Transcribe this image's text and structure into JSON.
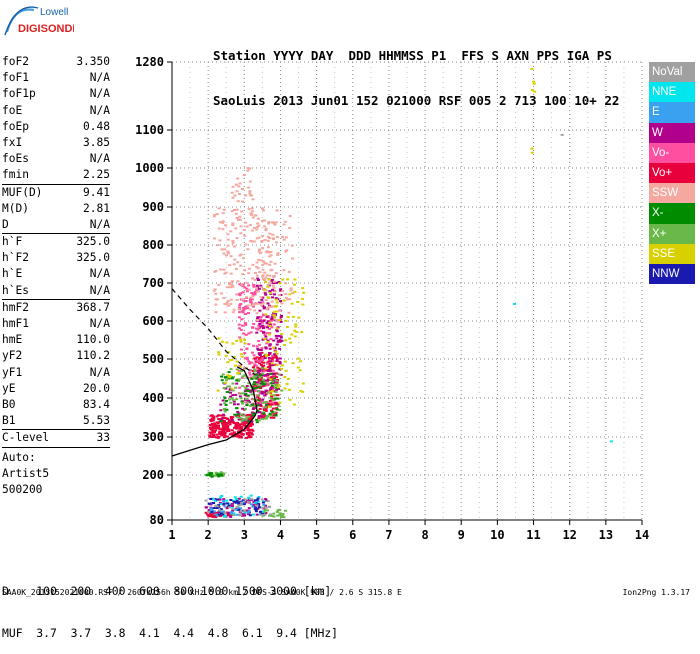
{
  "logo": {
    "line1": "Lowell",
    "line2": "DIGISONDE"
  },
  "header": {
    "line1": "Station YYYY DAY  DDD HHMMSS P1  FFS S AXN PPS IGA PS",
    "line2": "SaoLuis 2013 Jun01 152 021000 RSF 005 2 713 100 10+ 22"
  },
  "params": {
    "group1": [
      {
        "name": "foF2",
        "value": "3.350"
      },
      {
        "name": "foF1",
        "value": "N/A"
      },
      {
        "name": "foF1p",
        "value": "N/A"
      },
      {
        "name": "foE",
        "value": "N/A"
      },
      {
        "name": "foEp",
        "value": "0.48"
      },
      {
        "name": "fxI",
        "value": "3.85"
      },
      {
        "name": "foEs",
        "value": "N/A"
      },
      {
        "name": "fmin",
        "value": "2.25"
      }
    ],
    "group2": [
      {
        "name": "MUF(D)",
        "value": "9.41"
      },
      {
        "name": "M(D)",
        "value": "2.81"
      },
      {
        "name": "D",
        "value": "N/A"
      }
    ],
    "group3": [
      {
        "name": "h`F",
        "value": "325.0"
      },
      {
        "name": "h`F2",
        "value": "325.0"
      },
      {
        "name": "h`E",
        "value": "N/A"
      },
      {
        "name": "h`Es",
        "value": "N/A"
      }
    ],
    "group4": [
      {
        "name": "hmF2",
        "value": "368.7"
      },
      {
        "name": "hmF1",
        "value": "N/A"
      },
      {
        "name": "hmE",
        "value": "110.0"
      },
      {
        "name": "yF2",
        "value": "110.2"
      },
      {
        "name": "yF1",
        "value": "N/A"
      },
      {
        "name": "yE",
        "value": "20.0"
      },
      {
        "name": "B0",
        "value": "83.4"
      },
      {
        "name": "B1",
        "value": "5.53"
      }
    ],
    "group5": [
      {
        "name": "C-level",
        "value": "33"
      }
    ],
    "auto": [
      "Auto:",
      "Artist5",
      "500200"
    ]
  },
  "legend": [
    {
      "label": "NoVal",
      "color": "#a0a0a0"
    },
    {
      "label": "NNE",
      "color": "#00e5ee"
    },
    {
      "label": "E",
      "color": "#3aa0f0"
    },
    {
      "label": "W",
      "color": "#b0008c"
    },
    {
      "label": "Vo-",
      "color": "#ff4fa0"
    },
    {
      "label": "Vo+",
      "color": "#e8003c"
    },
    {
      "label": "SSW",
      "color": "#f4a8a0"
    },
    {
      "label": "X-",
      "color": "#008c00"
    },
    {
      "label": "X+",
      "color": "#6ab84a"
    },
    {
      "label": "SSE",
      "color": "#d8d000"
    },
    {
      "label": "NNW",
      "color": "#1a1ab0"
    }
  ],
  "bottom": {
    "line1": "D    100  200  400  600  800 1000 1500 3000 [km]",
    "line2": "MUF  3.7  3.7  3.8  4.1  4.4  4.8  6.1  9.4 [MHz]"
  },
  "footer": {
    "left": "SAA0K_2013152021000.RSF / 260fx256h 50 kHz 5.0 km / DPS-4 SAA0K 903 / 2.6 S 315.8 E",
    "right": "Ion2Png 1.3.17"
  },
  "chart_data": {
    "type": "scatter",
    "title": "",
    "xlabel": "",
    "ylabel": "",
    "x_ticks": [
      1,
      2,
      3,
      4,
      5,
      6,
      7,
      8,
      9,
      10,
      11,
      12,
      13,
      14
    ],
    "y_ticks": [
      80,
      200,
      300,
      400,
      500,
      600,
      700,
      800,
      900,
      1000,
      1100,
      1280
    ],
    "xlim": [
      1,
      14
    ],
    "ylim": [
      80,
      1280
    ],
    "grid": true,
    "legend_position": "right",
    "series": [
      {
        "name": "Vo+",
        "color": "#e8003c",
        "clusters": [
          {
            "x": [
              2.0,
              3.2
            ],
            "y": [
              300,
              360
            ],
            "n": 260
          },
          {
            "x": [
              3.2,
              3.9
            ],
            "y": [
              350,
              520
            ],
            "n": 160
          },
          {
            "x": [
              1.9,
              2.6
            ],
            "y": [
              90,
              105
            ],
            "n": 40
          }
        ]
      },
      {
        "name": "Vo-",
        "color": "#ff4fa0",
        "clusters": [
          {
            "x": [
              2.8,
              3.8
            ],
            "y": [
              380,
              620
            ],
            "n": 150
          },
          {
            "x": [
              2.8,
              3.3
            ],
            "y": [
              620,
              700
            ],
            "n": 50
          }
        ]
      },
      {
        "name": "W",
        "color": "#b0008c",
        "clusters": [
          {
            "x": [
              3.3,
              4.0
            ],
            "y": [
              420,
              720
            ],
            "n": 160
          },
          {
            "x": [
              2.3,
              3.6
            ],
            "y": [
              340,
              440
            ],
            "n": 60
          },
          {
            "x": [
              1.9,
              3.6
            ],
            "y": [
              90,
              140
            ],
            "n": 60
          }
        ]
      },
      {
        "name": "SSW",
        "color": "#f4a8a0",
        "clusters": [
          {
            "x": [
              2.1,
              3.9
            ],
            "y": [
              620,
              900
            ],
            "n": 180
          },
          {
            "x": [
              2.6,
              3.2
            ],
            "y": [
              880,
              1010
            ],
            "n": 30
          },
          {
            "x": [
              3.2,
              4.3
            ],
            "y": [
              600,
              880
            ],
            "n": 80
          }
        ]
      },
      {
        "name": "X+",
        "color": "#6ab84a",
        "clusters": [
          {
            "x": [
              2.3,
              4.0
            ],
            "y": [
              340,
              480
            ],
            "n": 110
          },
          {
            "x": [
              1.9,
              2.4
            ],
            "y": [
              200,
              210
            ],
            "n": 20
          },
          {
            "x": [
              3.4,
              4.1
            ],
            "y": [
              90,
              110
            ],
            "n": 20
          }
        ]
      },
      {
        "name": "X-",
        "color": "#008c00",
        "clusters": [
          {
            "x": [
              2.3,
              3.9
            ],
            "y": [
              340,
              470
            ],
            "n": 60
          },
          {
            "x": [
              1.9,
              2.4
            ],
            "y": [
              198,
              208
            ],
            "n": 14
          }
        ]
      },
      {
        "name": "SSE",
        "color": "#d8d000",
        "clusters": [
          {
            "x": [
              3.5,
              4.6
            ],
            "y": [
              380,
              720
            ],
            "n": 90
          },
          {
            "x": [
              2.2,
              3.0
            ],
            "y": [
              420,
              560
            ],
            "n": 30
          },
          {
            "x": [
              10.9,
              11.0
            ],
            "y": [
              1200,
              1275
            ],
            "n": 5
          },
          {
            "x": [
              10.9,
              10.95
            ],
            "y": [
              1005,
              1065
            ],
            "n": 2
          }
        ]
      },
      {
        "name": "NNE",
        "color": "#00e5ee",
        "clusters": [
          {
            "x": [
              2.0,
              3.5
            ],
            "y": [
              90,
              150
            ],
            "n": 40
          },
          {
            "x": [
              10.4,
              10.5
            ],
            "y": [
              640,
              650
            ],
            "n": 1
          },
          {
            "x": [
              13.1,
              13.2
            ],
            "y": [
              290,
              296
            ],
            "n": 1
          }
        ]
      },
      {
        "name": "E",
        "color": "#3aa0f0",
        "clusters": [
          {
            "x": [
              2.0,
              3.5
            ],
            "y": [
              95,
              135
            ],
            "n": 30
          }
        ]
      },
      {
        "name": "NNW",
        "color": "#1a1ab0",
        "clusters": [
          {
            "x": [
              1.9,
              3.5
            ],
            "y": [
              95,
              140
            ],
            "n": 40
          }
        ]
      },
      {
        "name": "NoVal",
        "color": "#a0a0a0",
        "clusters": [
          {
            "x": [
              1.9,
              3.8
            ],
            "y": [
              95,
              140
            ],
            "n": 30
          },
          {
            "x": [
              11.7,
              11.8
            ],
            "y": [
              1080,
              1090
            ],
            "n": 1
          }
        ]
      }
    ],
    "profile_line": {
      "style": "solid",
      "points": [
        [
          1.0,
          250
        ],
        [
          1.5,
          265
        ],
        [
          2.0,
          280
        ],
        [
          2.5,
          292
        ],
        [
          3.0,
          320
        ],
        [
          3.3,
          355
        ],
        [
          3.35,
          368.7
        ],
        [
          3.25,
          420
        ],
        [
          3.0,
          470
        ],
        [
          2.8,
          480
        ]
      ]
    },
    "profile_dashed": {
      "style": "dashed",
      "points": [
        [
          1.0,
          685
        ],
        [
          1.5,
          630
        ],
        [
          2.0,
          580
        ],
        [
          2.5,
          520
        ],
        [
          3.0,
          480
        ],
        [
          3.3,
          460
        ]
      ]
    }
  }
}
